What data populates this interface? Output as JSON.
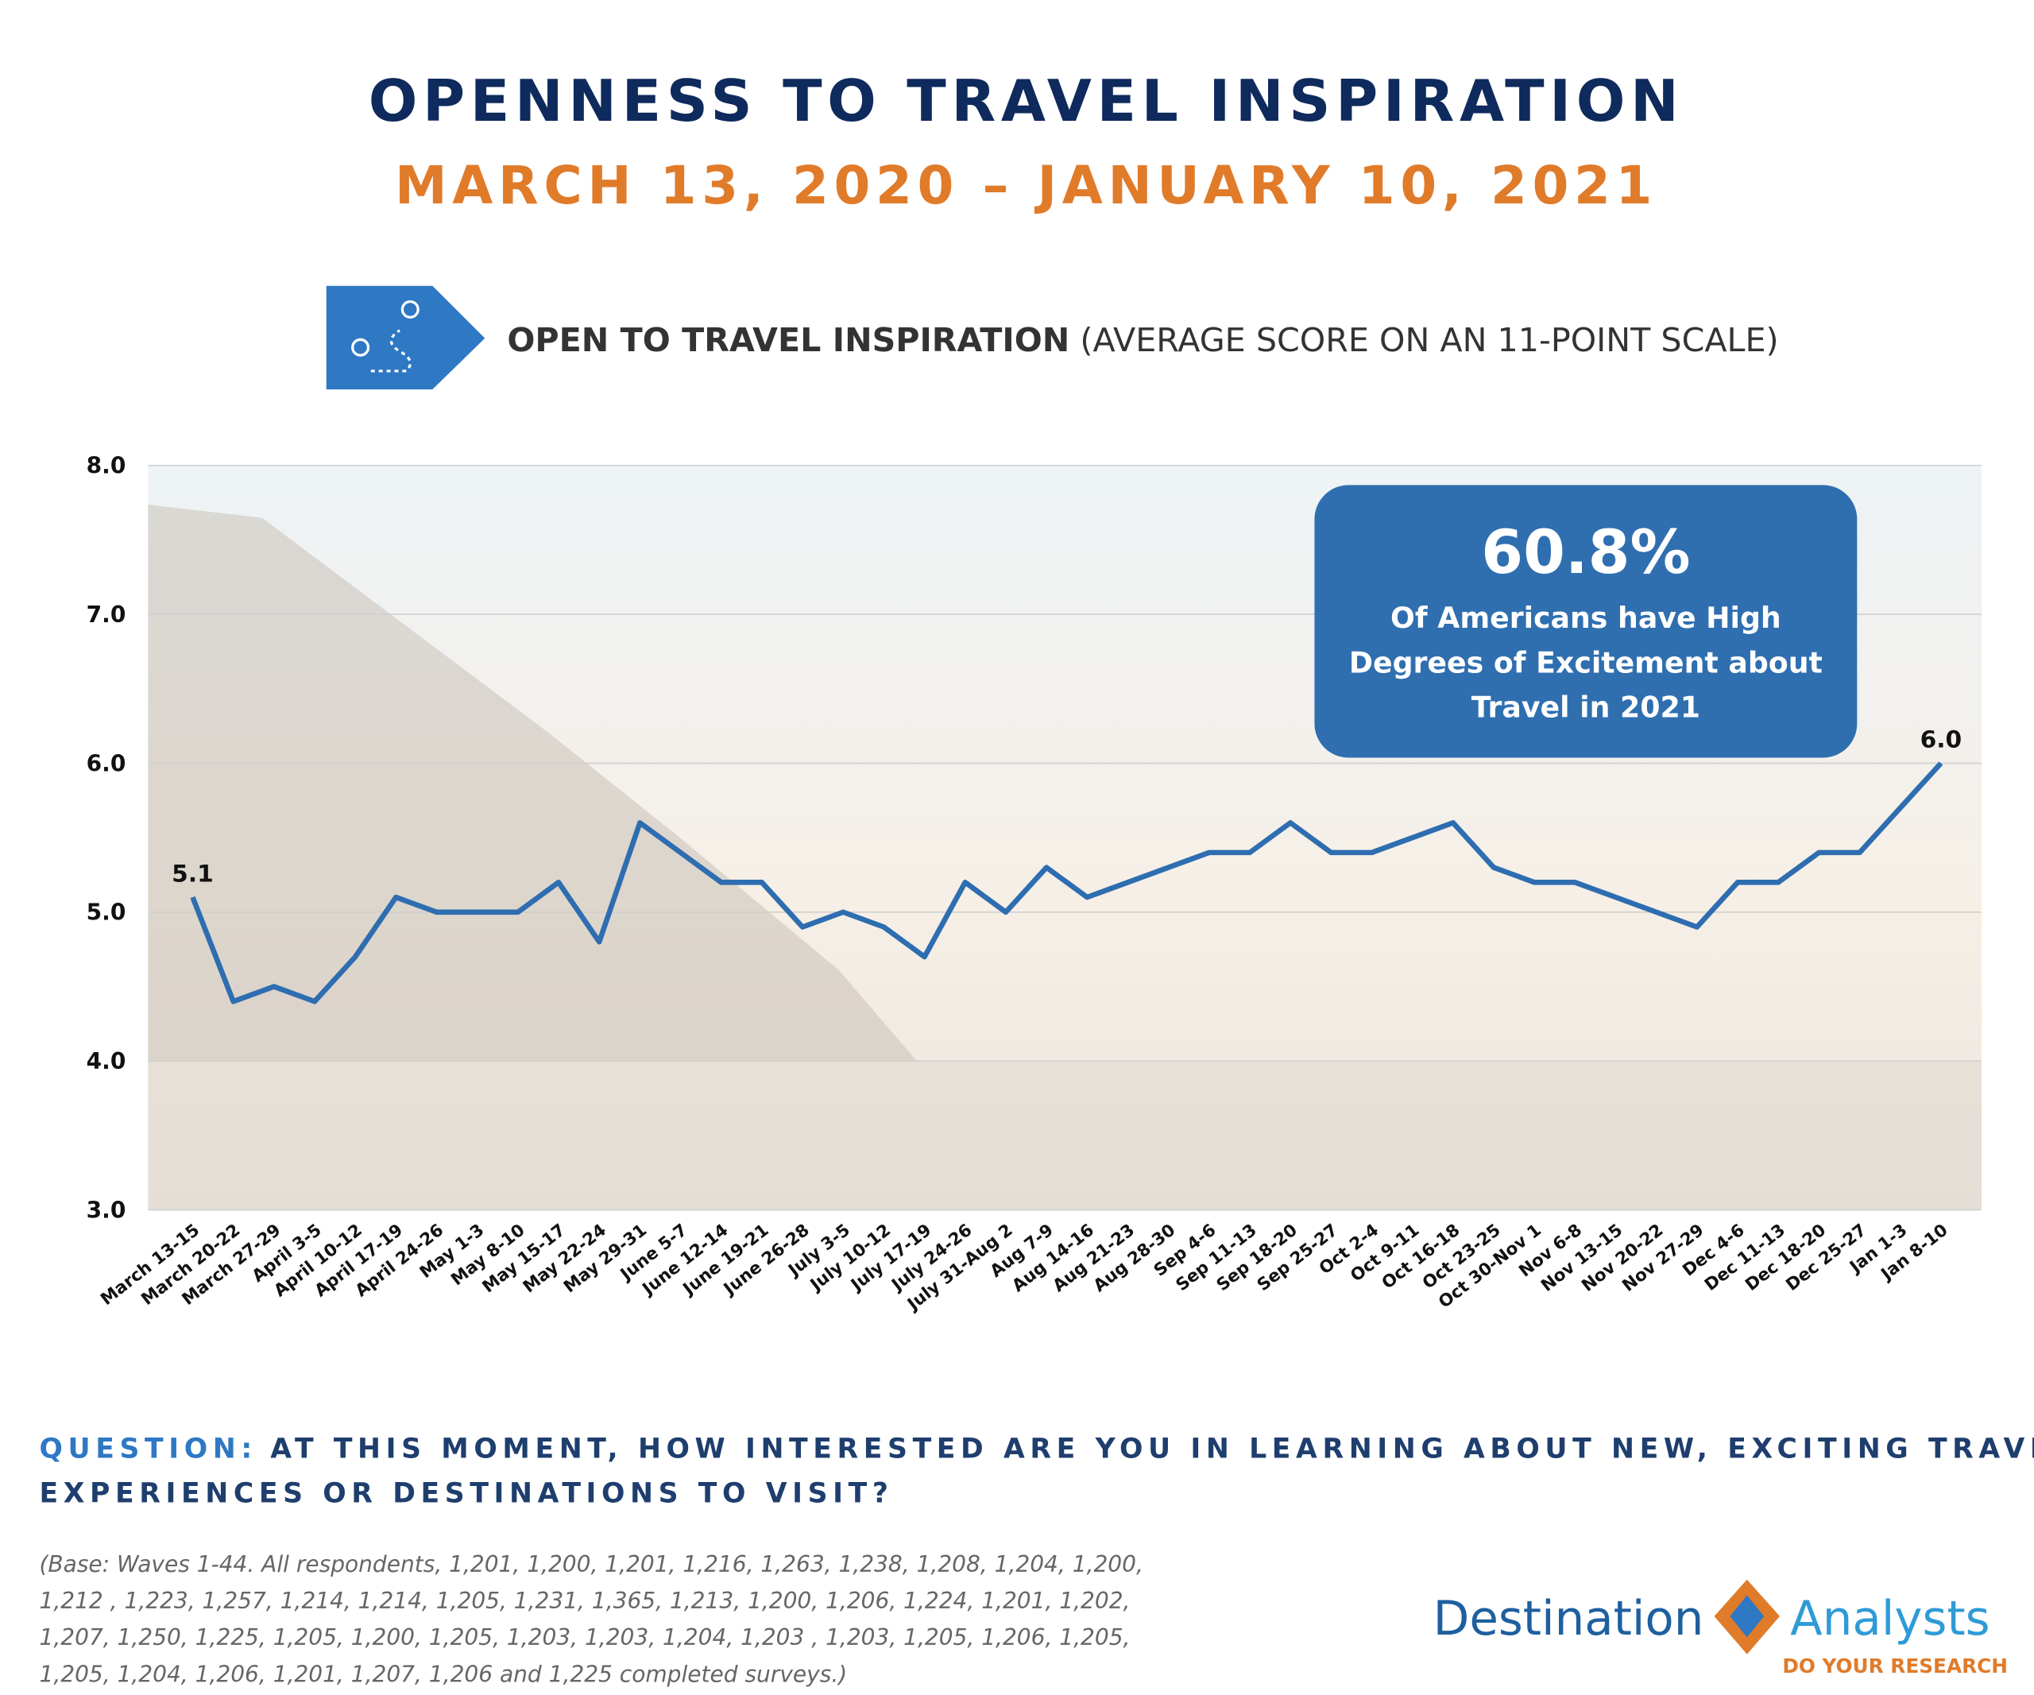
{
  "chart_data": {
    "type": "line",
    "title": "OPENNESS TO TRAVEL INSPIRATION",
    "subtitle": "MARCH 13, 2020 – JANUARY 10, 2021",
    "legend_title": "OPEN TO TRAVEL INSPIRATION",
    "legend_note": "(AVERAGE SCORE ON AN 11-POINT SCALE)",
    "categories": [
      "March 13-15",
      "March 20-22",
      "March 27-29",
      "April 3-5",
      "April 10-12",
      "April 17-19",
      "April 24-26",
      "May 1-3",
      "May 8-10",
      "May 15-17",
      "May 22-24",
      "May 29-31",
      "June 5-7",
      "June 12-14",
      "June 19-21",
      "June 26-28",
      "July 3-5",
      "July 10-12",
      "July 17-19",
      "July 24-26",
      "July 31-Aug 2",
      "Aug 7-9",
      "Aug 14-16",
      "Aug 21-23",
      "Aug 28-30",
      "Sep 4-6",
      "Sep 11-13",
      "Sep 18-20",
      "Sep 25-27",
      "Oct 2-4",
      "Oct 9-11",
      "Oct 16-18",
      "Oct 23-25",
      "Oct 30-Nov 1",
      "Nov 6-8",
      "Nov 13-15",
      "Nov 20-22",
      "Nov 27-29",
      "Dec 4-6",
      "Dec 11-13",
      "Dec 18-20",
      "Dec 25-27",
      "Jan 1-3",
      "Jan 8-10"
    ],
    "values": [
      5.1,
      4.4,
      4.5,
      4.4,
      4.7,
      5.1,
      5.0,
      5.0,
      5.0,
      5.2,
      4.8,
      5.6,
      5.4,
      5.2,
      5.2,
      4.9,
      5.0,
      4.9,
      4.7,
      5.2,
      5.0,
      5.3,
      5.1,
      5.2,
      5.3,
      5.4,
      5.4,
      5.6,
      5.4,
      5.4,
      5.5,
      5.6,
      5.3,
      5.2,
      5.2,
      5.1,
      5.0,
      4.9,
      5.2,
      5.2,
      5.4,
      5.4,
      5.7,
      6.0
    ],
    "value_labels": [
      "5.1",
      null,
      null,
      null,
      null,
      null,
      null,
      null,
      null,
      null,
      null,
      null,
      null,
      null,
      null,
      null,
      null,
      null,
      null,
      null,
      null,
      null,
      null,
      null,
      null,
      null,
      null,
      null,
      null,
      null,
      null,
      null,
      null,
      null,
      null,
      null,
      null,
      null,
      null,
      null,
      null,
      null,
      null,
      "6.0"
    ],
    "color": "#2e6db0",
    "ylim": [
      3.0,
      8.0
    ],
    "yticks": [
      {
        "value": 3,
        "label": "3.0"
      },
      {
        "value": 4,
        "label": "4.0"
      },
      {
        "value": 5,
        "label": "5.0"
      },
      {
        "value": 6,
        "label": "6.0"
      },
      {
        "value": 7,
        "label": "7.0"
      },
      {
        "value": 8,
        "label": "8.0"
      }
    ],
    "grid": true,
    "callout": {
      "headline": "60.8%",
      "lines": [
        "Of Americans have High",
        "Degrees of Excitement about",
        "Travel in 2021"
      ]
    }
  },
  "question": {
    "label": "QUESTION:",
    "lines": [
      "AT THIS MOMENT, HOW INTERESTED ARE YOU IN LEARNING ABOUT NEW, EXCITING TRAVEL",
      "EXPERIENCES OR DESTINATIONS TO VISIT?"
    ]
  },
  "footnote": [
    "(Base: Waves 1-44.  All respondents, 1,201, 1,200, 1,201, 1,216, 1,263, 1,238, 1,208, 1,204, 1,200,",
    "1,212 , 1,223, 1,257, 1,214, 1,214, 1,205, 1,231, 1,365, 1,213, 1,200, 1,206, 1,224, 1,201, 1,202,",
    "1,207, 1,250, 1,225, 1,205, 1,200, 1,205, 1,203, 1,203, 1,204, 1,203 , 1,203, 1,205, 1,206, 1,205,",
    "1,205, 1,204, 1,206, 1,201, 1,207, 1,206 and 1,225 completed surveys.)"
  ],
  "logo": {
    "left": "Destination",
    "right": "Analysts",
    "tagline": "DO YOUR RESEARCH"
  }
}
